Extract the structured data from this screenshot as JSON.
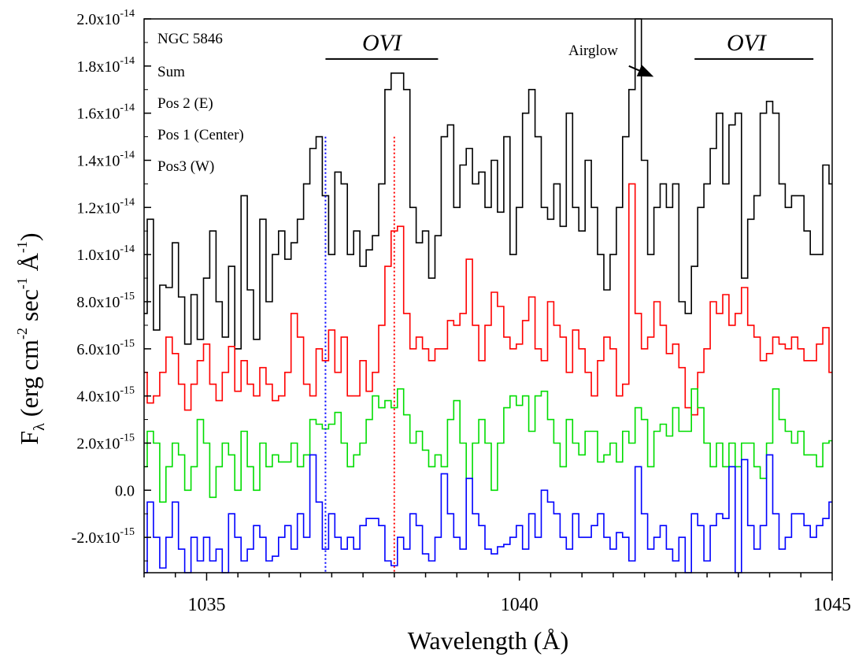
{
  "chart_data": {
    "type": "line",
    "xlabel": "Wavelength (Å)",
    "ylabel": "F",
    "ylabel_sub": "λ",
    "ylabel_units": "(erg cm",
    "ylabel_unit_parts": [
      "(erg cm",
      "-2",
      " sec",
      "-1",
      " Å",
      "-1",
      ")"
    ],
    "xlim": [
      1034,
      1045
    ],
    "ylim": [
      -3.5e-15,
      2e-14
    ],
    "x_ticks": [
      1035,
      1040,
      1045
    ],
    "x_tick_labels": [
      "1035",
      "1040",
      "1045"
    ],
    "y_ticks": [
      {
        "value": 2e-14,
        "mant": "2.0x10",
        "exp": "-14"
      },
      {
        "value": 1.8e-14,
        "mant": "1.8x10",
        "exp": "-14"
      },
      {
        "value": 1.6e-14,
        "mant": "1.6x10",
        "exp": "-14"
      },
      {
        "value": 1.4e-14,
        "mant": "1.4x10",
        "exp": "-14"
      },
      {
        "value": 1.2e-14,
        "mant": "1.2x10",
        "exp": "-14"
      },
      {
        "value": 1e-14,
        "mant": "1.0x10",
        "exp": "-14"
      },
      {
        "value": 8e-15,
        "mant": "8.0x10",
        "exp": "-15"
      },
      {
        "value": 6e-15,
        "mant": "6.0x10",
        "exp": "-15"
      },
      {
        "value": 4e-15,
        "mant": "4.0x10",
        "exp": "-15"
      },
      {
        "value": 2e-15,
        "mant": "2.0x10",
        "exp": "-15"
      },
      {
        "value": 0.0,
        "mant": "0.0",
        "exp": ""
      },
      {
        "value": -2e-15,
        "mant": "-2.0x10",
        "exp": "-15"
      }
    ],
    "legend_lines": [
      "NGC 5846",
      "Sum",
      "Pos 2 (E)",
      "Pos 1 (Center)",
      "Pos3 (W)"
    ],
    "annotations": {
      "ovi_1": {
        "text": "OVI",
        "x_from": 1036.9,
        "x_to": 1038.7,
        "y": 1.83e-14
      },
      "ovi_2": {
        "text": "OVI",
        "x_from": 1042.8,
        "x_to": 1044.7,
        "y": 1.83e-14
      },
      "airglow": {
        "text": "Airglow",
        "arrow_from": [
          1041.75,
          1.8e-14
        ],
        "arrow_to": [
          1042.1,
          1.76e-14
        ]
      }
    },
    "vlines": [
      {
        "x": 1036.9,
        "color": "#0000ff"
      },
      {
        "x": 1038.0,
        "color": "#ff0000"
      }
    ],
    "series": [
      {
        "color": "#000000",
        "x": [
          1034.0,
          1034.1,
          1034.2,
          1034.3,
          1034.4,
          1034.5,
          1034.6,
          1034.7,
          1034.8,
          1034.9,
          1035.0,
          1035.1,
          1035.2,
          1035.3,
          1035.4,
          1035.5,
          1035.6,
          1035.7,
          1035.8,
          1035.9,
          1036.0,
          1036.1,
          1036.2,
          1036.3,
          1036.4,
          1036.5,
          1036.6,
          1036.7,
          1036.8,
          1036.9,
          1037.0,
          1037.1,
          1037.2,
          1037.3,
          1037.4,
          1037.5,
          1037.6,
          1037.7,
          1037.8,
          1037.9,
          1038.0,
          1038.1,
          1038.2,
          1038.3,
          1038.4,
          1038.5,
          1038.6,
          1038.7,
          1038.8,
          1038.9,
          1039.0,
          1039.1,
          1039.2,
          1039.3,
          1039.4,
          1039.5,
          1039.6,
          1039.7,
          1039.8,
          1039.9,
          1040.0,
          1040.1,
          1040.2,
          1040.3,
          1040.4,
          1040.5,
          1040.6,
          1040.7,
          1040.8,
          1040.9,
          1041.0,
          1041.1,
          1041.2,
          1041.3,
          1041.4,
          1041.5,
          1041.6,
          1041.7,
          1041.8,
          1041.9,
          1042.0,
          1042.1,
          1042.2,
          1042.3,
          1042.4,
          1042.5,
          1042.6,
          1042.7,
          1042.8,
          1042.9,
          1043.0,
          1043.1,
          1043.2,
          1043.3,
          1043.4,
          1043.5,
          1043.6,
          1043.7,
          1043.8,
          1043.9,
          1044.0,
          1044.1,
          1044.2,
          1044.3,
          1044.4,
          1044.5,
          1044.6,
          1044.7,
          1044.8,
          1044.9,
          1045.0
        ],
        "y": [
          7.5e-15,
          1.15e-14,
          6.8e-15,
          8.7e-15,
          8.6e-15,
          1.05e-14,
          8.2e-15,
          6.2e-15,
          8.3e-15,
          6.4e-15,
          9e-15,
          1.1e-14,
          8e-15,
          6.5e-15,
          9.5e-15,
          6e-15,
          1.25e-14,
          8.5e-15,
          6.4e-15,
          1.15e-14,
          8e-15,
          1e-14,
          1.1e-14,
          9.8e-15,
          1.05e-14,
          1.15e-14,
          1.3e-14,
          1.45e-14,
          1.5e-14,
          1.25e-14,
          1e-14,
          1.35e-14,
          1.3e-14,
          1e-14,
          1.1e-14,
          9.5e-15,
          1.02e-14,
          1.08e-14,
          1.3e-14,
          1.7e-14,
          1.77e-14,
          1.77e-14,
          1.7e-14,
          1.2e-14,
          1.05e-14,
          1.1e-14,
          9e-15,
          1.08e-14,
          1.5e-14,
          1.55e-14,
          1.2e-14,
          1.38e-14,
          1.45e-14,
          1.3e-14,
          1.35e-14,
          1.2e-14,
          1.4e-14,
          1.18e-14,
          1.5e-14,
          1e-14,
          1.2e-14,
          1.6e-14,
          1.7e-14,
          1.5e-14,
          1.2e-14,
          1.15e-14,
          1.3e-14,
          1.12e-14,
          1.6e-14,
          1.2e-14,
          1.1e-14,
          1.4e-14,
          1.2e-14,
          1e-14,
          8.5e-15,
          1e-14,
          1.2e-14,
          1.5e-14,
          1.7e-14,
          2e-14,
          1.4e-14,
          1e-14,
          1.2e-14,
          1.3e-14,
          1.2e-14,
          1.3e-14,
          8e-15,
          7.5e-15,
          9.5e-15,
          1.2e-14,
          1.3e-14,
          1.45e-14,
          1.6e-14,
          1.3e-14,
          1.55e-14,
          1.6e-14,
          9e-15,
          1.15e-14,
          1.25e-14,
          1.6e-14,
          1.65e-14,
          1.6e-14,
          1.3e-14,
          1.2e-14,
          1.25e-14,
          1.25e-14,
          1.1e-14,
          1e-14,
          1e-14,
          1.38e-14,
          1.3e-14
        ]
      },
      {
        "color": "#ff0000",
        "x": [
          1034.0,
          1034.1,
          1034.2,
          1034.3,
          1034.4,
          1034.5,
          1034.6,
          1034.7,
          1034.8,
          1034.9,
          1035.0,
          1035.1,
          1035.2,
          1035.3,
          1035.4,
          1035.5,
          1035.6,
          1035.7,
          1035.8,
          1035.9,
          1036.0,
          1036.1,
          1036.2,
          1036.3,
          1036.4,
          1036.5,
          1036.6,
          1036.7,
          1036.8,
          1036.9,
          1037.0,
          1037.1,
          1037.2,
          1037.3,
          1037.4,
          1037.5,
          1037.6,
          1037.7,
          1037.8,
          1037.9,
          1038.0,
          1038.1,
          1038.2,
          1038.3,
          1038.4,
          1038.5,
          1038.6,
          1038.7,
          1038.8,
          1038.9,
          1039.0,
          1039.1,
          1039.2,
          1039.3,
          1039.4,
          1039.5,
          1039.6,
          1039.7,
          1039.8,
          1039.9,
          1040.0,
          1040.1,
          1040.2,
          1040.3,
          1040.4,
          1040.5,
          1040.6,
          1040.7,
          1040.8,
          1040.9,
          1041.0,
          1041.1,
          1041.2,
          1041.3,
          1041.4,
          1041.5,
          1041.6,
          1041.7,
          1041.8,
          1041.9,
          1042.0,
          1042.1,
          1042.2,
          1042.3,
          1042.4,
          1042.5,
          1042.6,
          1042.7,
          1042.8,
          1042.9,
          1043.0,
          1043.1,
          1043.2,
          1043.3,
          1043.4,
          1043.5,
          1043.6,
          1043.7,
          1043.8,
          1043.9,
          1044.0,
          1044.1,
          1044.2,
          1044.3,
          1044.4,
          1044.5,
          1044.6,
          1044.7,
          1044.8,
          1044.9,
          1045.0
        ],
        "y": [
          5e-15,
          3.7e-15,
          4e-15,
          5e-15,
          6.5e-15,
          5.8e-15,
          4.5e-15,
          3.4e-15,
          4.5e-15,
          5.5e-15,
          6.2e-15,
          4.5e-15,
          3.8e-15,
          5e-15,
          6.1e-15,
          4.2e-15,
          5.5e-15,
          4.5e-15,
          4e-15,
          5.2e-15,
          4.5e-15,
          3.8e-15,
          4e-15,
          5e-15,
          7.5e-15,
          6.5e-15,
          4.5e-15,
          4e-15,
          6e-15,
          5.5e-15,
          6.8e-15,
          5e-15,
          6.5e-15,
          4e-15,
          4e-15,
          5.5e-15,
          4.2e-15,
          5e-15,
          7e-15,
          9.5e-15,
          1.1e-14,
          1.12e-14,
          7.5e-15,
          6e-15,
          6.5e-15,
          6e-15,
          5.5e-15,
          6e-15,
          6e-15,
          7.2e-15,
          7e-15,
          7.5e-15,
          9.8e-15,
          7e-15,
          5.5e-15,
          7e-15,
          8.4e-15,
          7.8e-15,
          6.5e-15,
          6e-15,
          6.2e-15,
          7.2e-15,
          8.2e-15,
          6e-15,
          5.5e-15,
          8e-15,
          7e-15,
          6.5e-15,
          5e-15,
          6.8e-15,
          6e-15,
          5e-15,
          4e-15,
          5.5e-15,
          6.5e-15,
          6e-15,
          4e-15,
          4.5e-15,
          1.3e-14,
          7.5e-15,
          6e-15,
          6.5e-15,
          8e-15,
          7e-15,
          5.8e-15,
          6.2e-15,
          5.2e-15,
          3.5e-15,
          3.2e-15,
          5e-15,
          6e-15,
          8e-15,
          7.5e-15,
          8.3e-15,
          7e-15,
          7.5e-15,
          8.6e-15,
          7e-15,
          6.5e-15,
          5.5e-15,
          5.8e-15,
          6.5e-15,
          6.2e-15,
          6e-15,
          6.5e-15,
          6e-15,
          5.5e-15,
          5.5e-15,
          6.2e-15,
          6.9e-15,
          5e-15
        ]
      },
      {
        "color": "#00dd00",
        "x": [
          1034.0,
          1034.1,
          1034.2,
          1034.3,
          1034.4,
          1034.5,
          1034.6,
          1034.7,
          1034.8,
          1034.9,
          1035.0,
          1035.1,
          1035.2,
          1035.3,
          1035.4,
          1035.5,
          1035.6,
          1035.7,
          1035.8,
          1035.9,
          1036.0,
          1036.1,
          1036.2,
          1036.3,
          1036.4,
          1036.5,
          1036.6,
          1036.7,
          1036.8,
          1036.9,
          1037.0,
          1037.1,
          1037.2,
          1037.3,
          1037.4,
          1037.5,
          1037.6,
          1037.7,
          1037.8,
          1037.9,
          1038.0,
          1038.1,
          1038.2,
          1038.3,
          1038.4,
          1038.5,
          1038.6,
          1038.7,
          1038.8,
          1038.9,
          1039.0,
          1039.1,
          1039.2,
          1039.3,
          1039.4,
          1039.5,
          1039.6,
          1039.7,
          1039.8,
          1039.9,
          1040.0,
          1040.1,
          1040.2,
          1040.3,
          1040.4,
          1040.5,
          1040.6,
          1040.7,
          1040.8,
          1040.9,
          1041.0,
          1041.1,
          1041.2,
          1041.3,
          1041.4,
          1041.5,
          1041.6,
          1041.7,
          1041.8,
          1041.9,
          1042.0,
          1042.1,
          1042.2,
          1042.3,
          1042.4,
          1042.5,
          1042.6,
          1042.7,
          1042.8,
          1042.9,
          1043.0,
          1043.1,
          1043.2,
          1043.3,
          1043.4,
          1043.5,
          1043.6,
          1043.7,
          1043.8,
          1043.9,
          1044.0,
          1044.1,
          1044.2,
          1044.3,
          1044.4,
          1044.5,
          1044.6,
          1044.7,
          1044.8,
          1044.9,
          1045.0
        ],
        "y": [
          1e-15,
          2.5e-15,
          2e-15,
          -5e-16,
          1e-15,
          2e-15,
          1.5e-15,
          0.0,
          1e-15,
          3e-15,
          2e-15,
          -3e-16,
          1e-15,
          2e-15,
          1.5e-15,
          0.0,
          2.5e-15,
          1e-15,
          0.0,
          2e-15,
          1e-15,
          1.5e-15,
          1.2e-15,
          1.2e-15,
          2e-15,
          1e-15,
          1.5e-15,
          3e-15,
          2.8e-15,
          2.6e-15,
          2.8e-15,
          3.3e-15,
          2e-15,
          1e-15,
          1.5e-15,
          2e-15,
          3e-15,
          4e-15,
          3.5e-15,
          3.8e-15,
          3.5e-15,
          4.3e-15,
          3.2e-15,
          2e-15,
          2.5e-15,
          1.7e-15,
          1e-15,
          1.5e-15,
          1e-15,
          3e-15,
          3.8e-15,
          2e-15,
          5e-16,
          2e-15,
          3e-15,
          2e-15,
          0.0,
          2e-15,
          3.5e-15,
          4e-15,
          3.6e-15,
          4e-15,
          2.5e-15,
          4e-15,
          4.2e-15,
          3e-15,
          2e-15,
          1e-15,
          3e-15,
          2e-15,
          1.5e-15,
          2.5e-15,
          2.5e-15,
          1.2e-15,
          1.5e-15,
          2e-15,
          1.2e-15,
          2.5e-15,
          2e-15,
          3.5e-15,
          3e-15,
          1e-15,
          2.5e-15,
          2.8e-15,
          2.3e-15,
          3.5e-15,
          2.5e-15,
          2.5e-15,
          4.3e-15,
          3.5e-15,
          2e-15,
          1e-15,
          2e-15,
          1e-15,
          2e-15,
          1e-15,
          2e-15,
          2e-15,
          1e-15,
          5e-16,
          2e-15,
          4.3e-15,
          3e-15,
          2.5e-15,
          2e-15,
          2.5e-15,
          1.5e-15,
          1.5e-15,
          1e-15,
          2e-15,
          2.1e-15
        ]
      },
      {
        "color": "#0000ff",
        "x": [
          1034.0,
          1034.1,
          1034.2,
          1034.3,
          1034.4,
          1034.5,
          1034.6,
          1034.7,
          1034.8,
          1034.9,
          1035.0,
          1035.1,
          1035.2,
          1035.3,
          1035.4,
          1035.5,
          1035.6,
          1035.7,
          1035.8,
          1035.9,
          1036.0,
          1036.1,
          1036.2,
          1036.3,
          1036.4,
          1036.5,
          1036.6,
          1036.7,
          1036.8,
          1036.9,
          1037.0,
          1037.1,
          1037.2,
          1037.3,
          1037.4,
          1037.5,
          1037.6,
          1037.7,
          1037.8,
          1037.9,
          1038.0,
          1038.1,
          1038.2,
          1038.3,
          1038.4,
          1038.5,
          1038.6,
          1038.7,
          1038.8,
          1038.9,
          1039.0,
          1039.1,
          1039.2,
          1039.3,
          1039.4,
          1039.5,
          1039.6,
          1039.7,
          1039.8,
          1039.9,
          1040.0,
          1040.1,
          1040.2,
          1040.3,
          1040.4,
          1040.5,
          1040.6,
          1040.7,
          1040.8,
          1040.9,
          1041.0,
          1041.1,
          1041.2,
          1041.3,
          1041.4,
          1041.5,
          1041.6,
          1041.7,
          1041.8,
          1041.9,
          1042.0,
          1042.1,
          1042.2,
          1042.3,
          1042.4,
          1042.5,
          1042.6,
          1042.7,
          1042.8,
          1042.9,
          1043.0,
          1043.1,
          1043.2,
          1043.3,
          1043.4,
          1043.5,
          1043.6,
          1043.7,
          1043.8,
          1043.9,
          1044.0,
          1044.1,
          1044.2,
          1044.3,
          1044.4,
          1044.5,
          1044.6,
          1044.7,
          1044.8,
          1044.9,
          1045.0
        ],
        "y": [
          -3.5e-15,
          -5e-16,
          -2e-15,
          -3.3e-15,
          -2e-15,
          -5e-16,
          -2.5e-15,
          -3.5e-15,
          -2e-15,
          -3e-15,
          -2e-15,
          -3e-15,
          -2.5e-15,
          -3.5e-15,
          -1e-15,
          -2e-15,
          -3e-15,
          -2.5e-15,
          -1.5e-15,
          -2e-15,
          -3e-15,
          -2.8e-15,
          -2e-15,
          -1.5e-15,
          -2.5e-15,
          -1e-15,
          -2e-15,
          1.5e-15,
          -5e-16,
          -2.5e-15,
          -1e-15,
          -2e-15,
          -2.5e-15,
          -2e-15,
          -2.5e-15,
          -1.5e-15,
          -1.2e-15,
          -1.2e-15,
          -1.5e-15,
          -3e-15,
          -3.2e-15,
          -2e-15,
          -2.5e-15,
          -1e-15,
          -1.5e-15,
          -2.7e-15,
          -3e-15,
          -2e-15,
          7e-16,
          -1e-15,
          -2e-15,
          -2.5e-15,
          5e-16,
          -1e-15,
          -1.5e-15,
          -2.5e-15,
          -2.7e-15,
          -2.4e-15,
          -2.3e-15,
          -2e-15,
          -1.5e-15,
          -2.5e-15,
          -1e-15,
          -2e-15,
          0.0,
          -5e-16,
          -1e-15,
          -2e-15,
          -2.5e-15,
          -1e-15,
          -2e-15,
          -2e-15,
          -1.5e-15,
          -1e-15,
          -2e-15,
          -2.5e-15,
          -1.8e-15,
          -2e-15,
          -3e-15,
          1e-15,
          -1e-15,
          -2.5e-15,
          -2e-15,
          -1.5e-15,
          -2.5e-15,
          -3e-15,
          -2e-15,
          -3.5e-15,
          -1e-15,
          -1.5e-15,
          -3e-15,
          -1.5e-15,
          -1e-15,
          -1.2e-15,
          1e-15,
          -3.5e-15,
          1.3e-15,
          -1.5e-15,
          -2.5e-15,
          -1.5e-15,
          1.5e-15,
          -1e-15,
          -2.5e-15,
          -2e-15,
          -1e-15,
          -1e-15,
          -1.5e-15,
          -2e-15,
          -1.5e-15,
          -1.2e-15,
          -5e-16
        ]
      }
    ]
  }
}
